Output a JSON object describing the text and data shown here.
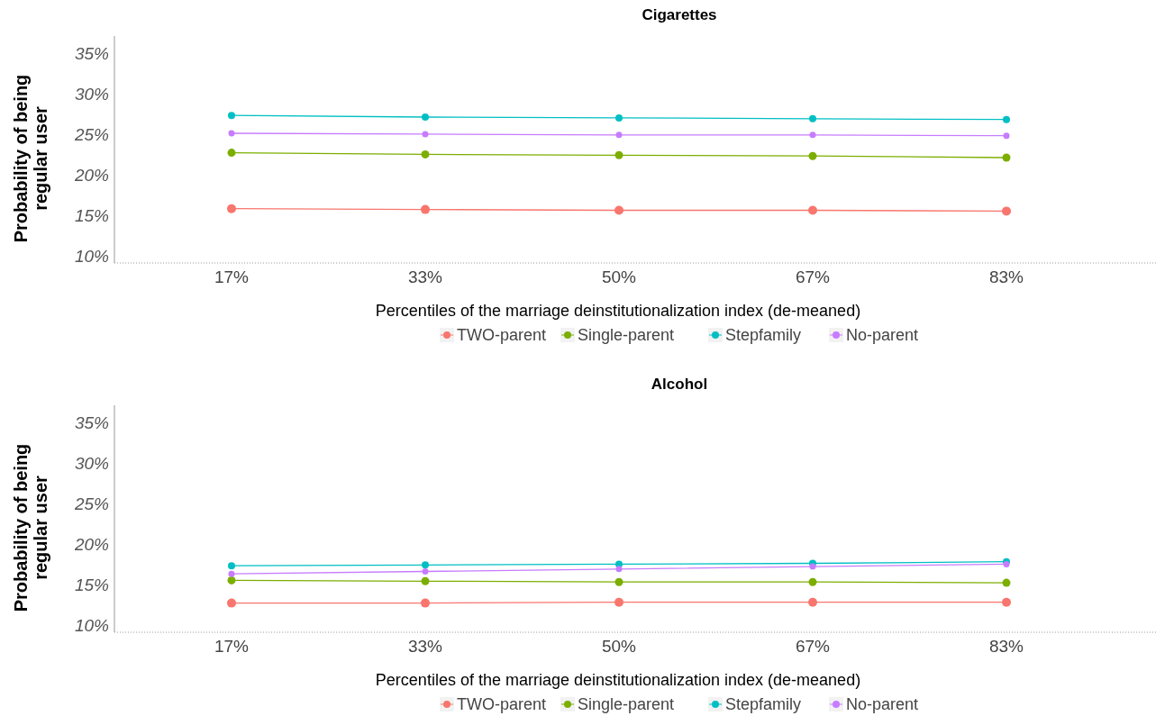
{
  "chart_data": [
    {
      "type": "line",
      "title": "Cigarettes",
      "xlabel": "Percentiles of the marriage deinstitutionalization index (de-meaned)",
      "ylabel": "Probability of being\nregular user",
      "categories": [
        "17%",
        "33%",
        "50%",
        "67%",
        "83%"
      ],
      "series": [
        {
          "name": "TWO-parent",
          "color": "#f8766d",
          "values": [
            15.8,
            15.7,
            15.6,
            15.6,
            15.5
          ]
        },
        {
          "name": "Single-parent",
          "color": "#7cae00",
          "values": [
            22.7,
            22.5,
            22.4,
            22.3,
            22.1
          ]
        },
        {
          "name": "Stepfamily",
          "color": "#00bfc4",
          "values": [
            27.3,
            27.1,
            27.0,
            26.9,
            26.8
          ]
        },
        {
          "name": "No-parent",
          "color": "#c77cff",
          "values": [
            25.1,
            25.0,
            24.9,
            24.9,
            24.8
          ]
        }
      ],
      "ylim": [
        9.1,
        37.1
      ],
      "yticks": [
        {
          "value": 10,
          "label": "10%"
        },
        {
          "value": 15,
          "label": "15%"
        },
        {
          "value": 20,
          "label": "20%"
        },
        {
          "value": 25,
          "label": "25%"
        },
        {
          "value": 30,
          "label": "30%"
        },
        {
          "value": 35,
          "label": "35%"
        }
      ],
      "grid": false,
      "legend": "bottom",
      "marker": "circle",
      "line_style": "solid"
    },
    {
      "type": "line",
      "title": "Alcohol",
      "xlabel": "Percentiles of the marriage deinstitutionalization index (de-meaned)",
      "ylabel": "Probability of being\nregular user",
      "categories": [
        "17%",
        "33%",
        "50%",
        "67%",
        "83%"
      ],
      "series": [
        {
          "name": "TWO-parent",
          "color": "#f8766d",
          "values": [
            12.7,
            12.7,
            12.8,
            12.8,
            12.8
          ]
        },
        {
          "name": "Single-parent",
          "color": "#7cae00",
          "values": [
            15.5,
            15.4,
            15.3,
            15.3,
            15.2
          ]
        },
        {
          "name": "Stepfamily",
          "color": "#00bfc4",
          "values": [
            17.3,
            17.4,
            17.5,
            17.6,
            17.8
          ]
        },
        {
          "name": "No-parent",
          "color": "#c77cff",
          "values": [
            16.3,
            16.6,
            16.9,
            17.2,
            17.5
          ]
        }
      ],
      "ylim": [
        9.1,
        37.1
      ],
      "yticks": [
        {
          "value": 10,
          "label": "10%"
        },
        {
          "value": 15,
          "label": "15%"
        },
        {
          "value": 20,
          "label": "20%"
        },
        {
          "value": 25,
          "label": "25%"
        },
        {
          "value": 30,
          "label": "30%"
        },
        {
          "value": 35,
          "label": "35%"
        }
      ],
      "grid": false,
      "legend": "bottom",
      "marker": "circle",
      "line_style": "solid"
    }
  ]
}
